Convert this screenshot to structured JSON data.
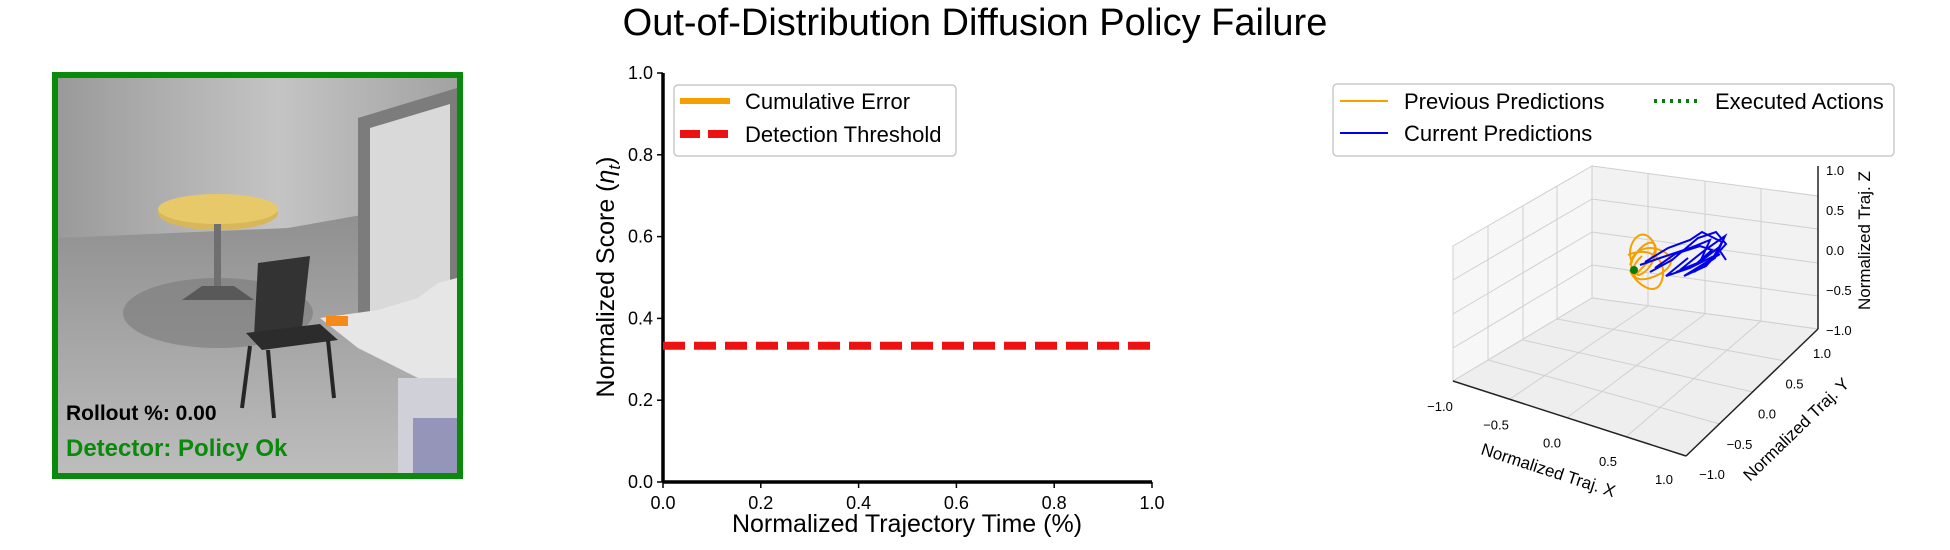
{
  "figure": {
    "title": "Out-of-Distribution Diffusion Policy Failure"
  },
  "camera_panel": {
    "rollout_text": "Rollout %: 0.00",
    "detector_text": "Detector: Policy Ok",
    "status_color": "#0a8a0a"
  },
  "chart_data": [
    {
      "type": "line",
      "xlabel": "Normalized Trajectory Time (%)",
      "ylabel": "Normalized Score (",
      "ylabel_symbol": "η",
      "ylabel_sub": "t",
      "ylabel_close": ")",
      "xlim": [
        0.0,
        1.0
      ],
      "ylim": [
        0.0,
        1.0
      ],
      "xticks": [
        "0.0",
        "0.2",
        "0.4",
        "0.6",
        "0.8",
        "1.0"
      ],
      "yticks": [
        "0.0",
        "0.2",
        "0.4",
        "0.6",
        "0.8",
        "1.0"
      ],
      "legend_position": "top-left",
      "series": [
        {
          "name": "Cumulative Error",
          "color": "#f5a000",
          "style": "solid",
          "x": [],
          "y": []
        },
        {
          "name": "Detection Threshold",
          "color": "#ee1111",
          "style": "dashed",
          "x": [
            0.0,
            1.0
          ],
          "y": [
            0.333,
            0.333
          ]
        }
      ]
    },
    {
      "type": "line3d",
      "xlabel": "Normalized Traj. X",
      "ylabel": "Normalized Traj. Y",
      "zlabel": "Normalized Traj. Z",
      "xlim": [
        -1.0,
        1.0
      ],
      "ylim": [
        -1.0,
        1.0
      ],
      "zlim": [
        -1.0,
        1.0
      ],
      "xticks": [
        "−1.0",
        "−0.5",
        "0.0",
        "0.5",
        "1.0"
      ],
      "yticks": [
        "−1.0",
        "−0.5",
        "0.0",
        "0.5",
        "1.0"
      ],
      "zticks": [
        "−1.0",
        "−0.5",
        "0.0",
        "0.5",
        "1.0"
      ],
      "legend_position": "top",
      "series": [
        {
          "name": "Previous Predictions",
          "color": "#f5a000",
          "style": "solid"
        },
        {
          "name": "Current Predictions",
          "color": "#0000ee",
          "style": "solid"
        },
        {
          "name": "Executed Actions",
          "color": "#0a7a0a",
          "style": "dotted"
        }
      ]
    }
  ]
}
